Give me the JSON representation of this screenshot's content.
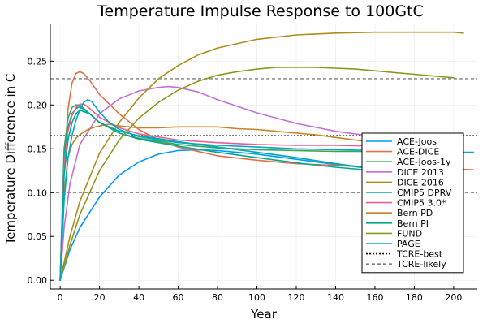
{
  "chart_data": {
    "type": "line",
    "title": "Temperature Impulse Response to 100GtC",
    "xlabel": "Year",
    "ylabel": "Temperature Difference in C",
    "xlim": [
      -5,
      212
    ],
    "ylim": [
      -0.01,
      0.292
    ],
    "xticks": [
      0,
      20,
      40,
      60,
      80,
      100,
      120,
      140,
      160,
      180,
      200
    ],
    "yticks": [
      0.0,
      0.05,
      0.1,
      0.15,
      0.2,
      0.25
    ],
    "ytick_labels": [
      "0.00",
      "0.05",
      "0.10",
      "0.15",
      "0.20",
      "0.25"
    ],
    "grid": true,
    "legend_position": "right",
    "series": [
      {
        "name": "ACE-Joos",
        "color": "#009AFA",
        "x": [
          0,
          5,
          10,
          20,
          30,
          40,
          50,
          60,
          70,
          80,
          100,
          120,
          140,
          160,
          180,
          200
        ],
        "y": [
          0.0,
          0.035,
          0.06,
          0.095,
          0.12,
          0.135,
          0.144,
          0.148,
          0.149,
          0.148,
          0.144,
          0.138,
          0.132,
          0.127,
          0.123,
          0.12
        ]
      },
      {
        "name": "ACE-DICE",
        "color": "#E36F47",
        "x": [
          0,
          2,
          4,
          6,
          8,
          10,
          12,
          15,
          20,
          30,
          40,
          50,
          60,
          80,
          100,
          120,
          140,
          160,
          180,
          200,
          210
        ],
        "y": [
          0.0,
          0.13,
          0.195,
          0.225,
          0.236,
          0.238,
          0.236,
          0.228,
          0.212,
          0.19,
          0.172,
          0.16,
          0.152,
          0.142,
          0.137,
          0.133,
          0.131,
          0.129,
          0.128,
          0.127,
          0.126
        ]
      },
      {
        "name": "ACE-Joos-1y",
        "color": "#3EA44E",
        "x": [
          0,
          2,
          4,
          6,
          8,
          10,
          15,
          20,
          30,
          40,
          60,
          80,
          100,
          120,
          140,
          160,
          180,
          200
        ],
        "y": [
          0.0,
          0.15,
          0.185,
          0.197,
          0.2,
          0.2,
          0.19,
          0.18,
          0.168,
          0.162,
          0.155,
          0.151,
          0.149,
          0.148,
          0.147,
          0.147,
          0.146,
          0.146
        ]
      },
      {
        "name": "DICE 2013",
        "color": "#C271D2",
        "x": [
          0,
          2,
          5,
          10,
          20,
          30,
          40,
          50,
          55,
          60,
          70,
          80,
          100,
          120,
          140,
          160,
          180,
          200
        ],
        "y": [
          0.0,
          0.06,
          0.11,
          0.155,
          0.19,
          0.207,
          0.216,
          0.22,
          0.221,
          0.22,
          0.215,
          0.206,
          0.191,
          0.179,
          0.17,
          0.164,
          0.16,
          0.157
        ]
      },
      {
        "name": "DICE 2016",
        "color": "#AC8E18",
        "x": [
          0,
          5,
          10,
          20,
          30,
          40,
          50,
          60,
          70,
          80,
          100,
          120,
          140,
          160,
          180,
          200,
          205
        ],
        "y": [
          0.0,
          0.05,
          0.09,
          0.145,
          0.18,
          0.208,
          0.23,
          0.245,
          0.257,
          0.265,
          0.275,
          0.28,
          0.282,
          0.283,
          0.283,
          0.283,
          0.282
        ]
      },
      {
        "name": "CMIP5 DPRV",
        "color": "#00A9AD",
        "x": [
          0,
          2,
          4,
          6,
          8,
          10,
          15,
          20,
          30,
          40,
          60,
          80,
          100,
          120,
          140,
          160,
          180,
          200
        ],
        "y": [
          0.0,
          0.14,
          0.175,
          0.19,
          0.196,
          0.198,
          0.19,
          0.18,
          0.17,
          0.165,
          0.158,
          0.152,
          0.146,
          0.14,
          0.133,
          0.127,
          0.121,
          0.116
        ]
      },
      {
        "name": "CMIP5 3.0*",
        "color": "#ED5D92",
        "x": [
          0,
          2,
          4,
          6,
          8,
          10,
          12,
          15,
          20,
          30,
          40,
          60,
          80,
          100,
          120,
          140,
          160,
          180,
          200
        ],
        "y": [
          0.0,
          0.13,
          0.17,
          0.188,
          0.197,
          0.201,
          0.201,
          0.196,
          0.186,
          0.174,
          0.167,
          0.16,
          0.157,
          0.155,
          0.154,
          0.154,
          0.153,
          0.153,
          0.153
        ]
      },
      {
        "name": "Bern PD",
        "color": "#C68225",
        "x": [
          0,
          2,
          4,
          6,
          8,
          10,
          14,
          18,
          22,
          25,
          30,
          35,
          40,
          50,
          60,
          70,
          80,
          90,
          100,
          110,
          120,
          130,
          140,
          150,
          160,
          170,
          180,
          190,
          200
        ],
        "y": [
          0.0,
          0.1,
          0.14,
          0.155,
          0.162,
          0.166,
          0.172,
          0.175,
          0.177,
          0.178,
          0.176,
          0.175,
          0.174,
          0.174,
          0.175,
          0.175,
          0.175,
          0.173,
          0.172,
          0.17,
          0.168,
          0.166,
          0.163,
          0.16,
          0.157,
          0.154,
          0.152,
          0.15,
          0.148
        ]
      },
      {
        "name": "Bern PI",
        "color": "#00A98D",
        "x": [
          0,
          2,
          4,
          6,
          8,
          10,
          15,
          20,
          30,
          40,
          60,
          80,
          100,
          120,
          140,
          160,
          180,
          200
        ],
        "y": [
          0.0,
          0.12,
          0.16,
          0.18,
          0.19,
          0.194,
          0.19,
          0.18,
          0.168,
          0.161,
          0.153,
          0.146,
          0.14,
          0.134,
          0.129,
          0.125,
          0.122,
          0.119
        ]
      },
      {
        "name": "FUND",
        "color": "#8E971D",
        "x": [
          0,
          5,
          10,
          20,
          30,
          40,
          50,
          60,
          70,
          80,
          90,
          100,
          110,
          120,
          130,
          140,
          150,
          160,
          170,
          180,
          190,
          200
        ],
        "y": [
          0.0,
          0.04,
          0.075,
          0.125,
          0.16,
          0.185,
          0.203,
          0.217,
          0.227,
          0.234,
          0.238,
          0.241,
          0.243,
          0.243,
          0.243,
          0.242,
          0.241,
          0.239,
          0.237,
          0.235,
          0.233,
          0.231
        ]
      },
      {
        "name": "PAGE",
        "color": "#00A8CB",
        "x": [
          0,
          2,
          4,
          6,
          8,
          10,
          12,
          14,
          16,
          20,
          25,
          30,
          40,
          50,
          60,
          80,
          100,
          120,
          140,
          160,
          180,
          200,
          210
        ],
        "y": [
          0.0,
          0.09,
          0.14,
          0.165,
          0.182,
          0.195,
          0.203,
          0.206,
          0.204,
          0.192,
          0.18,
          0.172,
          0.164,
          0.16,
          0.157,
          0.154,
          0.152,
          0.15,
          0.149,
          0.148,
          0.147,
          0.146,
          0.146
        ]
      },
      {
        "name": "TCRE-best",
        "color": "#000000",
        "dash": "dotted",
        "hline": 0.165
      },
      {
        "name": "TCRE-likely",
        "color": "#7f7f7f",
        "dash": "dashed",
        "hline": [
          0.1,
          0.23
        ]
      }
    ]
  }
}
